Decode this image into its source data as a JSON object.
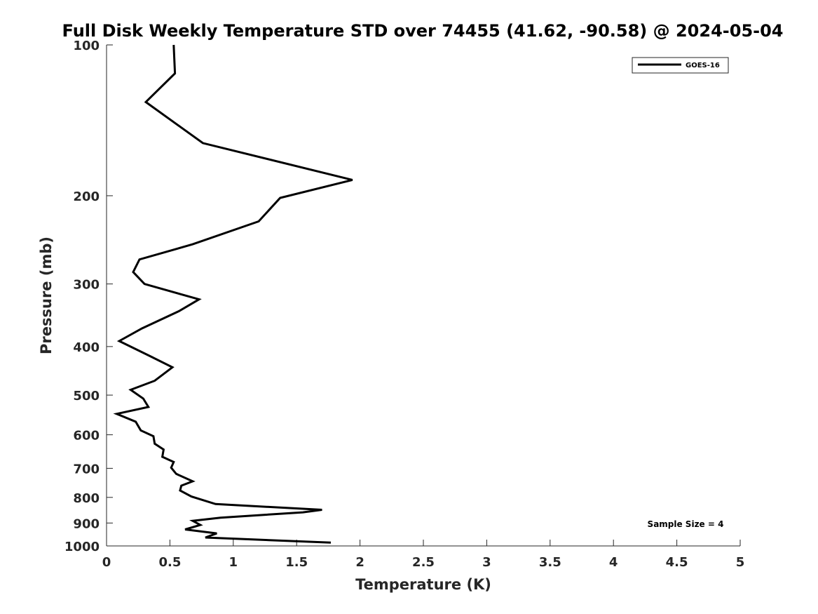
{
  "chart_data": {
    "type": "line",
    "title": "Full Disk Weekly Temperature STD over 74455 (41.62, -90.58) @ 2024-05-04",
    "xlabel": "Temperature (K)",
    "ylabel": "Pressure (mb)",
    "xlim": [
      0,
      5
    ],
    "ylim": [
      100,
      1000
    ],
    "yscale": "log",
    "y_reversed": true,
    "x_ticks": [
      0,
      0.5,
      1,
      1.5,
      2,
      2.5,
      3,
      3.5,
      4,
      4.5,
      5
    ],
    "x_tick_labels": [
      "0",
      "0.5",
      "1",
      "1.5",
      "2",
      "2.5",
      "3",
      "3.5",
      "4",
      "4.5",
      "5"
    ],
    "y_ticks": [
      100,
      200,
      300,
      400,
      500,
      600,
      700,
      800,
      900,
      1000
    ],
    "y_tick_labels": [
      "100",
      "200",
      "300",
      "400",
      "500",
      "600",
      "700",
      "800",
      "900",
      "1000"
    ],
    "grid": false,
    "legend_position": "top-right",
    "series": [
      {
        "name": "GOES-16",
        "color": "#000000",
        "x": [
          0.53,
          0.54,
          0.31,
          0.76,
          1.94,
          1.37,
          1.2,
          0.68,
          0.26,
          0.21,
          0.3,
          0.73,
          0.57,
          0.28,
          0.1,
          0.36,
          0.52,
          0.38,
          0.19,
          0.29,
          0.33,
          0.08,
          0.23,
          0.27,
          0.37,
          0.38,
          0.45,
          0.44,
          0.53,
          0.51,
          0.55,
          0.68,
          0.59,
          0.58,
          0.67,
          0.86,
          1.7,
          1.55,
          0.9,
          0.68,
          0.74,
          0.62,
          0.87,
          0.78,
          1.77
        ],
        "y": [
          100,
          114,
          130,
          157,
          186,
          202,
          225,
          250,
          268,
          284,
          300,
          322,
          340,
          368,
          390,
          420,
          440,
          468,
          488,
          508,
          528,
          545,
          565,
          588,
          604,
          625,
          642,
          664,
          680,
          698,
          718,
          743,
          758,
          775,
          797,
          825,
          847,
          857,
          878,
          891,
          908,
          927,
          944,
          962,
          985
        ]
      }
    ],
    "annotation": "Sample Size = 4"
  }
}
